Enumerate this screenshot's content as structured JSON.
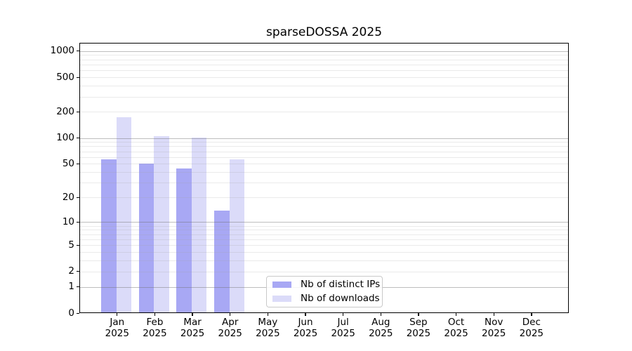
{
  "title": "sparseDOSSA 2025",
  "chart_data": {
    "type": "bar",
    "title": "sparseDOSSA 2025",
    "y_scale": "log(1+x)",
    "grid": true,
    "legend_position": "lower-center",
    "ylim": [
      0,
      1240
    ],
    "y_ticks": [
      0,
      1,
      2,
      5,
      10,
      20,
      50,
      100,
      200,
      500,
      1000
    ],
    "y_major_gridlines": [
      1,
      10,
      100,
      1000
    ],
    "categories": [
      "Jan",
      "Feb",
      "Mar",
      "Apr",
      "May",
      "Jun",
      "Jul",
      "Aug",
      "Sep",
      "Oct",
      "Nov",
      "Dec"
    ],
    "year": "2025",
    "series": [
      {
        "name": "Nb of distinct IPs",
        "color": "#a8a8f4",
        "values": [
          56,
          50,
          44,
          14,
          0,
          0,
          0,
          0,
          0,
          0,
          0,
          0
        ]
      },
      {
        "name": "Nb of downloads",
        "color": "#dbdbf9",
        "values": [
          175,
          105,
          102,
          56,
          0,
          0,
          0,
          0,
          0,
          0,
          0,
          0
        ]
      }
    ],
    "colors": {
      "axis": "#000000",
      "major_grid": "#bcbcbc",
      "minor_grid": "#ececec",
      "background": "#ffffff"
    }
  }
}
